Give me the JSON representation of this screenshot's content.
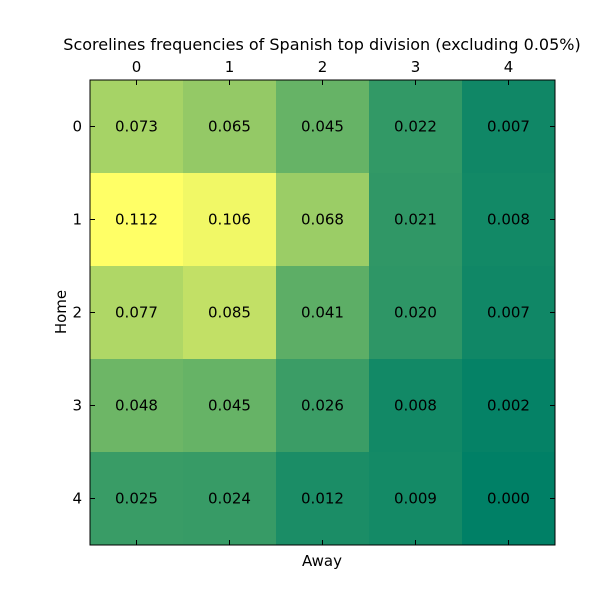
{
  "chart_data": {
    "type": "heatmap",
    "title": "Scorelines frequencies of Spanish top division (excluding 0.05%)",
    "xlabel": "Away",
    "ylabel": "Home",
    "x_ticks": [
      "0",
      "1",
      "2",
      "3",
      "4"
    ],
    "y_ticks": [
      "0",
      "1",
      "2",
      "3",
      "4"
    ],
    "x_axis_position": "top",
    "colormap": "summer",
    "color_range": [
      0.0,
      0.112
    ],
    "values": [
      [
        0.073,
        0.065,
        0.045,
        0.022,
        0.007
      ],
      [
        0.112,
        0.106,
        0.068,
        0.021,
        0.008
      ],
      [
        0.077,
        0.085,
        0.041,
        0.02,
        0.007
      ],
      [
        0.048,
        0.045,
        0.026,
        0.008,
        0.002
      ],
      [
        0.025,
        0.024,
        0.012,
        0.009,
        0.0
      ]
    ],
    "labels": [
      [
        "0.073",
        "0.065",
        "0.045",
        "0.022",
        "0.007"
      ],
      [
        "0.112",
        "0.106",
        "0.068",
        "0.021",
        "0.008"
      ],
      [
        "0.077",
        "0.085",
        "0.041",
        "0.020",
        "0.007"
      ],
      [
        "0.048",
        "0.045",
        "0.026",
        "0.008",
        "0.002"
      ],
      [
        "0.025",
        "0.024",
        "0.012",
        "0.009",
        "0.000"
      ]
    ]
  }
}
